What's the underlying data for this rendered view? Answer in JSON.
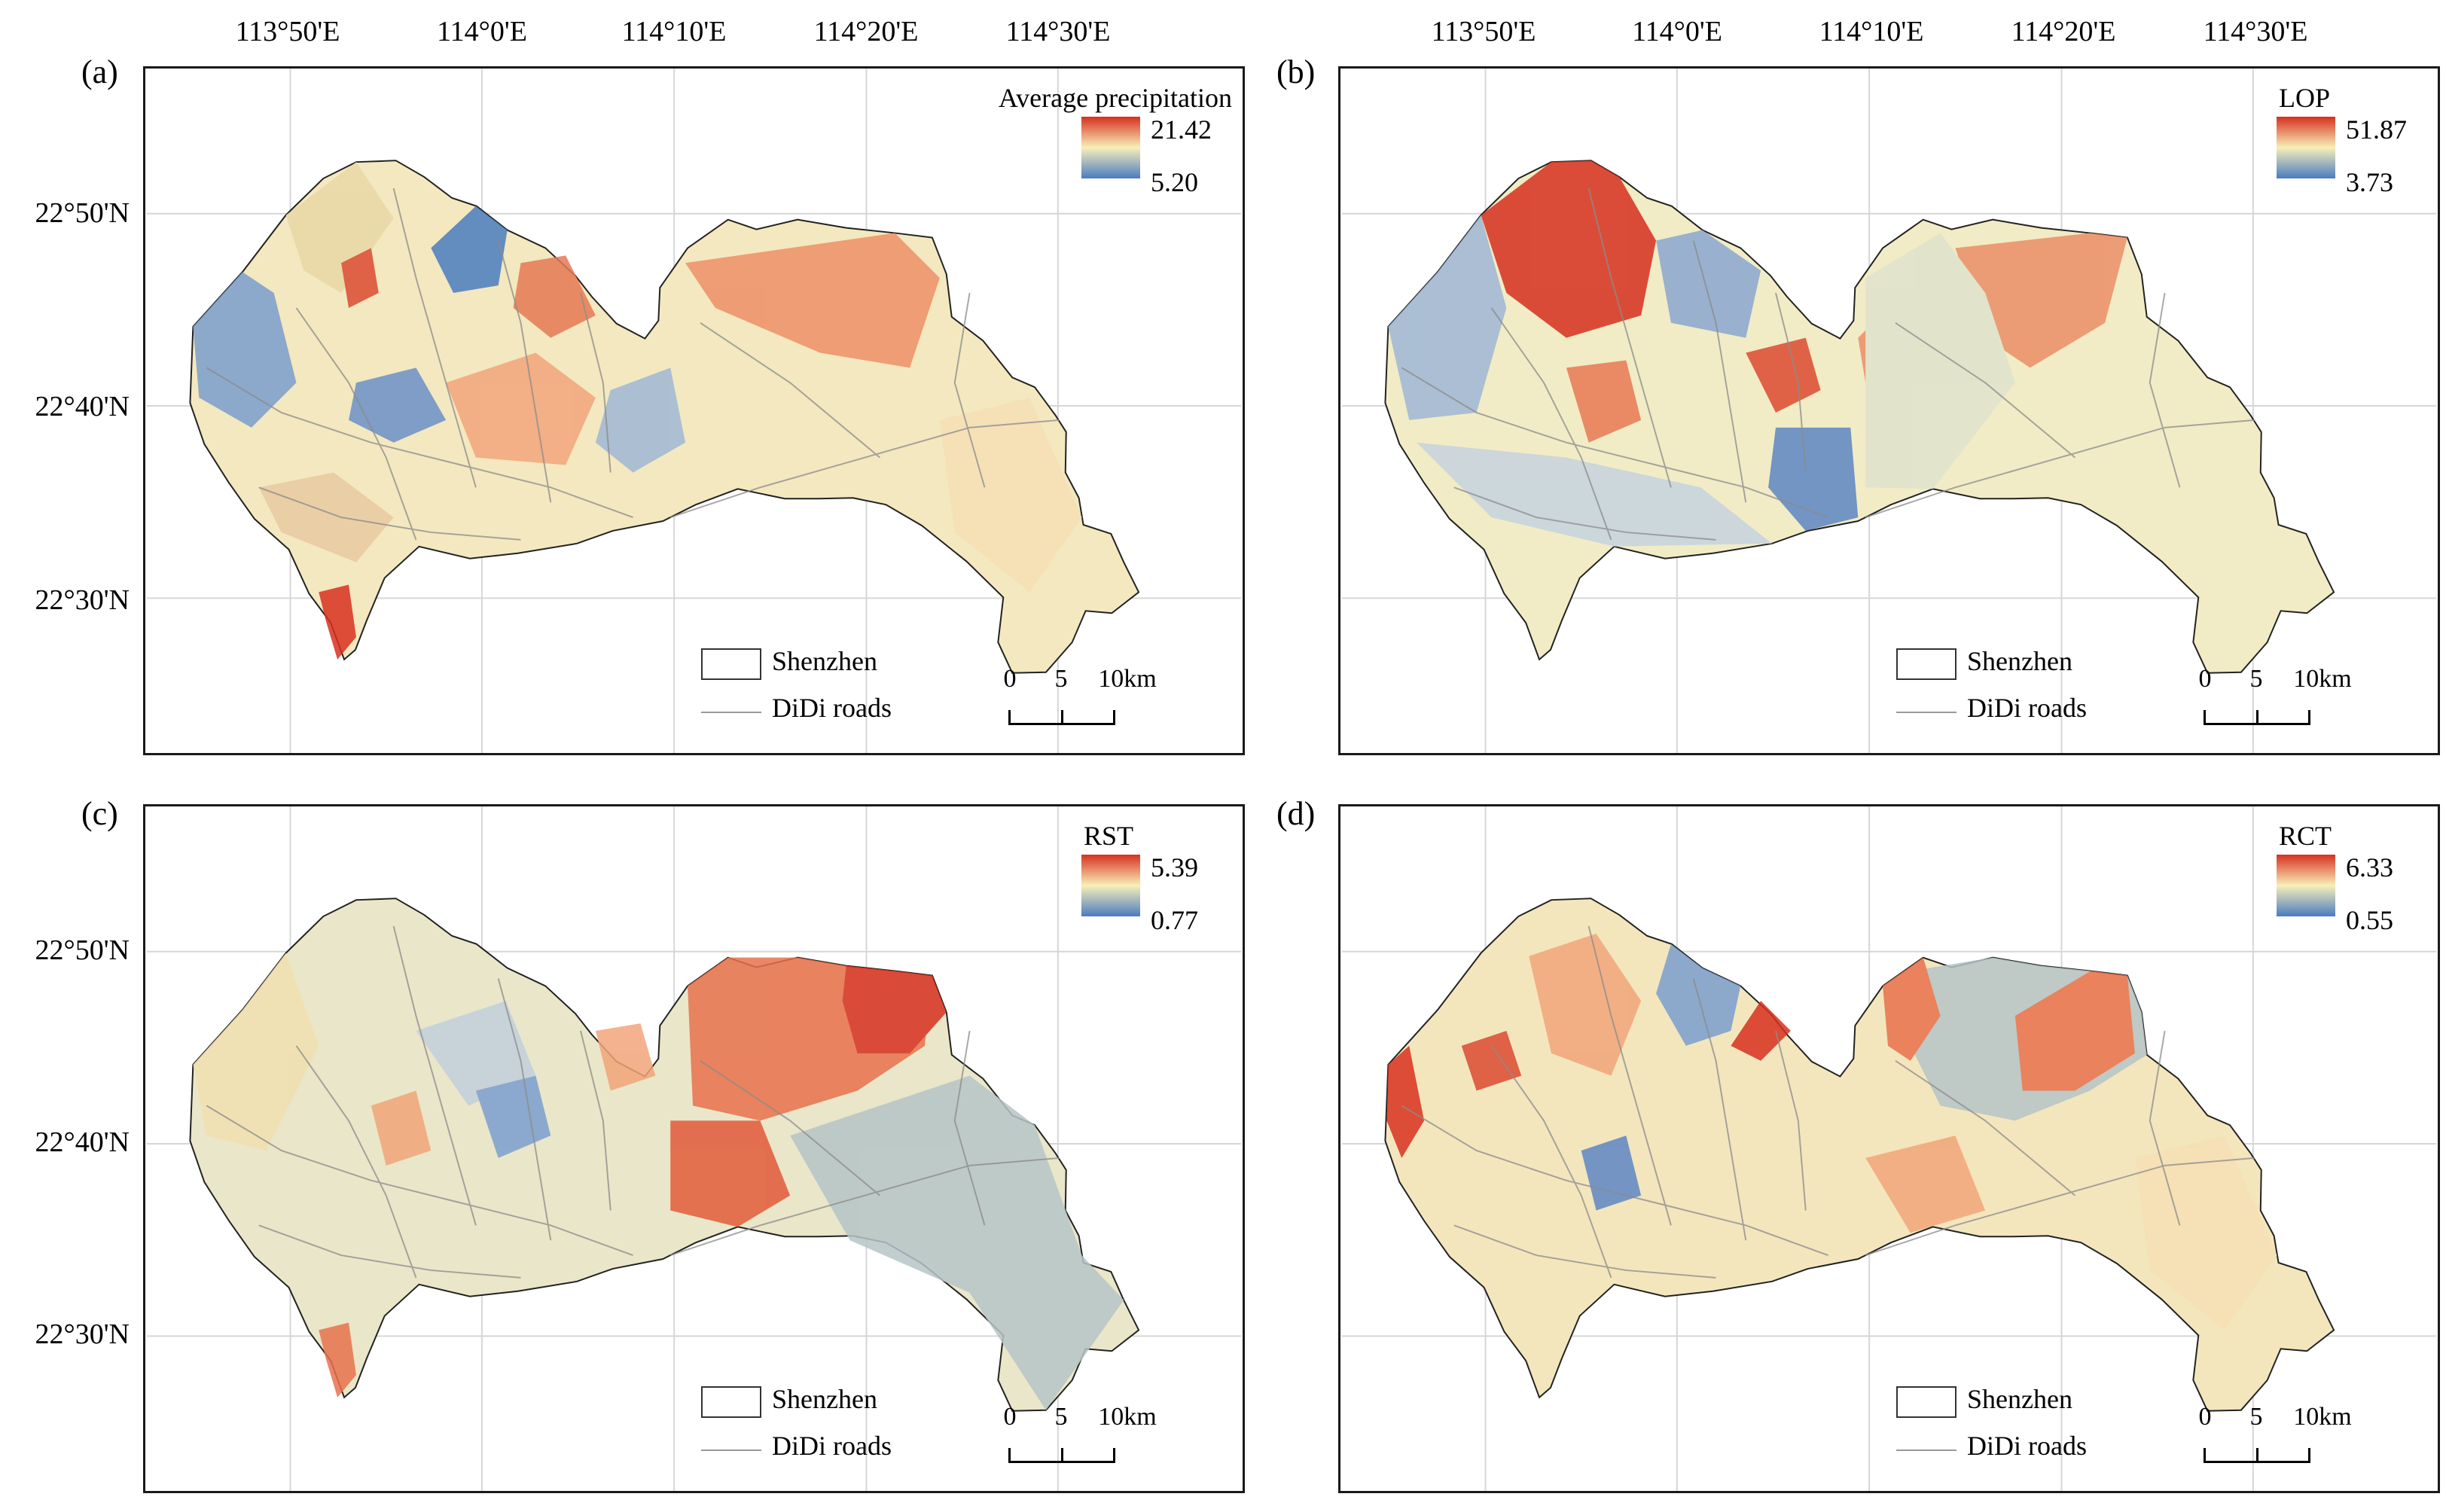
{
  "figure": {
    "longitude_labels": [
      "113°50'E",
      "114°0'E",
      "114°10'E",
      "114°20'E",
      "114°30'E"
    ],
    "latitude_labels": [
      "22°50'N",
      "22°40'N",
      "22°30'N"
    ],
    "legend_keys": {
      "boundary": "Shenzhen",
      "roads": "DiDi roads"
    },
    "scale_bar": {
      "labels": [
        "0",
        "5",
        "10km"
      ]
    },
    "color_ramp": {
      "high": "#d7301f",
      "mid": "#f7efb8",
      "low": "#4a7cc0"
    }
  },
  "panels": [
    {
      "label": "(a)",
      "legend_title": "Average precipitation",
      "max": "21.42",
      "min": "5.20"
    },
    {
      "label": "(b)",
      "legend_title": "LOP",
      "max": "51.87",
      "min": "3.73"
    },
    {
      "label": "(c)",
      "legend_title": "RST",
      "max": "5.39",
      "min": "0.77"
    },
    {
      "label": "(d)",
      "legend_title": "RCT",
      "max": "6.33",
      "min": "0.55"
    }
  ]
}
